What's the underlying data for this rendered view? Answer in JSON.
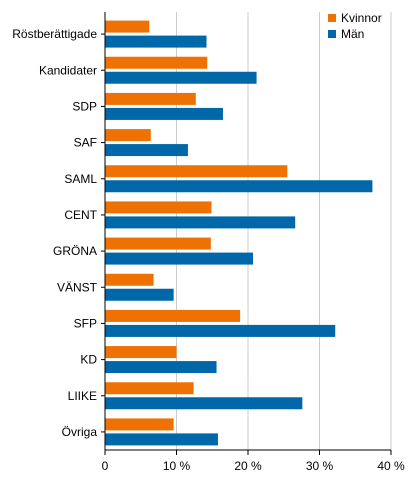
{
  "chart_data": {
    "type": "bar",
    "orientation": "horizontal",
    "categories": [
      "Röstberättigade",
      "Kandidater",
      "SDP",
      "SAF",
      "SAML",
      "CENT",
      "GRÖNA",
      "VÄNST",
      "SFP",
      "KD",
      "LIIKE",
      "Övriga"
    ],
    "series": [
      {
        "name": "Kvinnor",
        "color": "#ee7203",
        "values": [
          6.2,
          14.3,
          12.7,
          6.4,
          25.5,
          14.9,
          14.8,
          6.8,
          18.9,
          10.0,
          12.4,
          9.6
        ]
      },
      {
        "name": "Män",
        "color": "#0068a8",
        "values": [
          14.2,
          21.2,
          16.5,
          11.6,
          37.4,
          26.6,
          20.7,
          9.6,
          32.2,
          15.6,
          27.6,
          15.8
        ]
      }
    ],
    "xlim": [
      0,
      40
    ],
    "xticks": [
      0,
      10,
      20,
      30,
      40
    ],
    "xtick_labels": [
      "0",
      "10 %",
      "20 %",
      "30 %",
      "40 %"
    ],
    "grid": "vertical",
    "grid_color": "#cccccc",
    "legend_position": "top-right",
    "title": "",
    "xlabel": "",
    "ylabel": ""
  }
}
